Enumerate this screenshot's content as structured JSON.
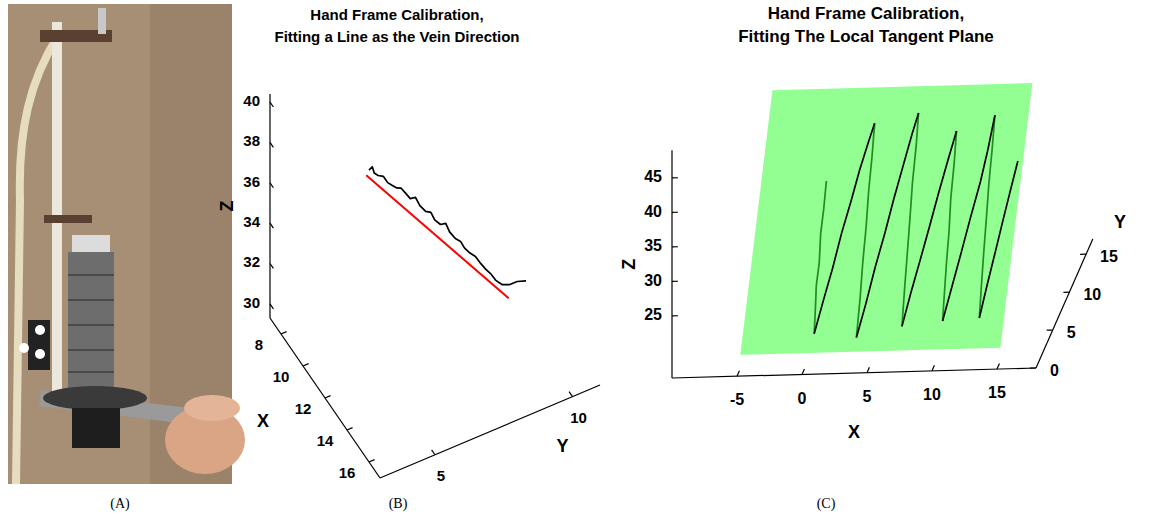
{
  "photo": {
    "label": "(A)"
  },
  "chart_data": [
    {
      "type": "line3d",
      "label": "(B)",
      "title": "Hand Frame Calibration, Fitting a Line as the Vein Direction",
      "x_label": "X",
      "y_label": "Y",
      "z_label": "Z",
      "xlim": [
        7,
        17
      ],
      "ylim": [
        3,
        11
      ],
      "zlim": [
        29.3,
        40.4
      ],
      "xticks": [
        8,
        10,
        12,
        14,
        16
      ],
      "yticks": [
        5,
        10
      ],
      "zticks": [
        30,
        32,
        34,
        36,
        38,
        40
      ],
      "series": [
        {
          "color": "#000000",
          "x": [
            9.0,
            9.05,
            9.1,
            9.2,
            9.3,
            9.45,
            9.55,
            9.65,
            9.8,
            9.9,
            10.0,
            10.1,
            10.25,
            10.4,
            10.5,
            10.6,
            10.75,
            10.85,
            10.95,
            11.1,
            11.2,
            11.3,
            11.4,
            11.55,
            11.65,
            11.75,
            11.85,
            11.9,
            12.0,
            12.05,
            12.1,
            12.15
          ],
          "y": [
            5.8,
            5.9,
            5.95,
            6.05,
            6.2,
            6.3,
            6.4,
            6.55,
            6.65,
            6.8,
            6.9,
            7.05,
            7.15,
            7.3,
            7.45,
            7.55,
            7.7,
            7.85,
            7.95,
            8.1,
            8.25,
            8.35,
            8.5,
            8.65,
            8.8,
            8.95,
            9.1,
            9.25,
            9.45,
            9.7,
            9.95,
            10.25
          ],
          "z": [
            36.6,
            36.75,
            36.45,
            36.35,
            36.3,
            36.05,
            35.95,
            35.8,
            35.85,
            35.55,
            35.35,
            35.4,
            35.05,
            34.8,
            34.75,
            34.4,
            34.2,
            34.25,
            33.85,
            33.55,
            33.4,
            33.1,
            32.85,
            32.7,
            32.35,
            32.05,
            31.8,
            31.45,
            31.2,
            31.1,
            31.15,
            31.05
          ]
        },
        {
          "color": "#ff0000",
          "x": [
            9.0,
            12.2
          ],
          "y": [
            5.7,
            9.6
          ],
          "z": [
            36.4,
            30.6
          ]
        }
      ]
    },
    {
      "type": "line3d",
      "label": "(C)",
      "title": "Hand Frame Calibration, Fitting The Local Tangent Plane",
      "x_label": "X",
      "y_label": "Y",
      "z_label": "Z",
      "xlim": [
        -10,
        18
      ],
      "ylim": [
        0,
        17
      ],
      "zlim": [
        16,
        49
      ],
      "xticks": [
        -5,
        0,
        5,
        10,
        15
      ],
      "yticks": [
        0,
        5,
        10,
        15
      ],
      "zticks": [
        25,
        30,
        35,
        40,
        45
      ],
      "plane": {
        "color": "#80ff80",
        "x": [
          -5,
          15,
          15,
          -5
        ],
        "y": [
          1,
          1,
          10.6,
          10.6
        ],
        "z": [
          18,
          18,
          45.8,
          45.8
        ]
      },
      "series": [
        {
          "color": "#228b22",
          "x": [
            0.0,
            0.1,
            0.05,
            0.25,
            0.2,
            0.4,
            0.5,
            null,
            3.2,
            3.3,
            3.4,
            3.5,
            3.6,
            3.7,
            3.8,
            null,
            6.5,
            6.6,
            6.7,
            6.8,
            6.95,
            7.05,
            7.2,
            null,
            9.6,
            9.7,
            9.8,
            9.95,
            10.05,
            10.2,
            10.3,
            null,
            12.4,
            12.5,
            12.6,
            12.7,
            12.85,
            12.95,
            13.1
          ],
          "y": [
            7.3,
            6.1,
            5.4,
            4.2,
            3.5,
            2.4,
            1.7,
            null,
            9.3,
            8.1,
            6.7,
            5.6,
            4.2,
            3.0,
            1.5,
            null,
            9.6,
            8.5,
            7.0,
            5.9,
            4.5,
            3.3,
            1.9,
            null,
            8.9,
            7.8,
            6.4,
            5.3,
            4.1,
            2.9,
            2.0,
            null,
            9.5,
            8.3,
            6.9,
            5.8,
            4.4,
            3.3,
            2.1
          ],
          "z": [
            36.0,
            33.2,
            30.5,
            27.6,
            25.0,
            22.3,
            20.0,
            null,
            42.0,
            38.4,
            34.9,
            31.2,
            27.5,
            23.6,
            19.5,
            null,
            43.0,
            39.5,
            35.8,
            32.1,
            28.4,
            24.6,
            20.5,
            null,
            41.0,
            37.5,
            34.0,
            30.4,
            26.9,
            23.8,
            21.0,
            null,
            42.5,
            39.0,
            35.4,
            31.8,
            28.2,
            24.5,
            21.2
          ]
        },
        {
          "color": "#000000",
          "x": [
            0.5,
            0.9,
            1.3,
            1.7,
            2.1,
            2.5,
            2.9,
            3.2,
            null,
            3.8,
            4.2,
            4.6,
            5.0,
            5.4,
            5.8,
            6.2,
            6.5,
            null,
            7.2,
            7.6,
            8.0,
            8.4,
            8.8,
            9.2,
            9.6,
            null,
            10.3,
            10.7,
            11.1,
            11.5,
            11.9,
            12.2,
            12.4,
            null,
            13.1,
            13.4,
            13.7,
            14.0,
            14.3,
            14.6
          ],
          "y": [
            1.7,
            2.9,
            4.1,
            5.2,
            6.6,
            7.5,
            8.7,
            9.3,
            null,
            1.5,
            2.8,
            4.0,
            5.3,
            6.4,
            7.9,
            8.8,
            9.6,
            null,
            1.9,
            3.0,
            4.4,
            5.5,
            6.6,
            7.9,
            8.9,
            null,
            2.0,
            3.4,
            4.5,
            5.7,
            7.1,
            8.2,
            9.5,
            null,
            2.1,
            3.2,
            4.5,
            5.6,
            6.7,
            7.8
          ],
          "z": [
            20.0,
            23.5,
            26.8,
            30.6,
            33.9,
            37.2,
            40.1,
            42.0,
            null,
            19.5,
            23.0,
            26.9,
            30.3,
            34.0,
            37.6,
            40.8,
            43.0,
            null,
            20.5,
            24.1,
            27.6,
            31.0,
            34.5,
            37.9,
            41.0,
            null,
            21.0,
            24.7,
            28.2,
            31.9,
            35.5,
            39.0,
            42.5,
            null,
            21.2,
            24.6,
            28.0,
            31.3,
            34.5,
            37.6
          ]
        }
      ]
    }
  ]
}
